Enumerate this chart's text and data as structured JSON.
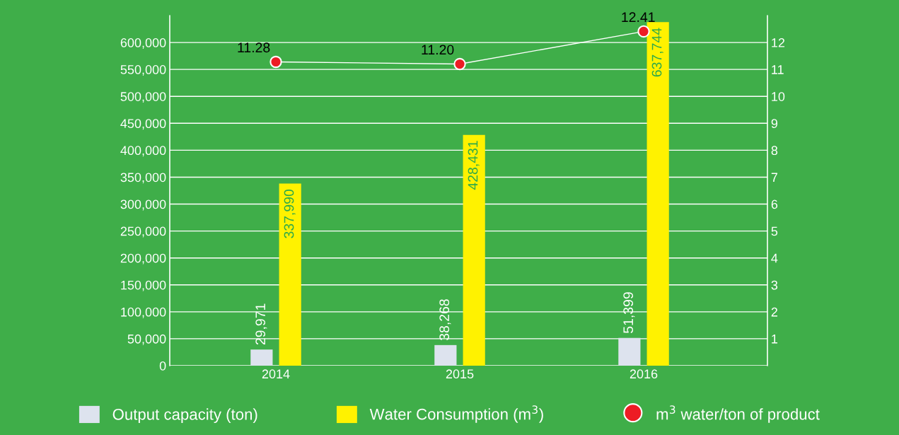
{
  "chart_data": {
    "type": "bar",
    "categories": [
      "2014",
      "2015",
      "2016"
    ],
    "series": [
      {
        "name": "Output capacity (ton)",
        "color": "#dde3ee",
        "values": [
          29971,
          38268,
          51399
        ],
        "value_labels": [
          "29,971",
          "38,268",
          "51,399"
        ]
      },
      {
        "name": "Water Consumption (m$^{3}$)",
        "color": "#fff200",
        "values": [
          337990,
          428431,
          637744
        ],
        "value_labels": [
          "337,990",
          "428,431",
          "637,744"
        ]
      },
      {
        "name": "m$^{3}$ water/ton of product",
        "type": "line",
        "axis": "y2",
        "color": "#ed1c24",
        "values": [
          11.28,
          11.2,
          12.41
        ],
        "value_labels": [
          "11.28",
          "11.20",
          "12.41"
        ]
      }
    ],
    "ylim": [
      0,
      650000
    ],
    "yticks": [
      {
        "value": 0,
        "label": "0"
      },
      {
        "value": 50000,
        "label": "50,000"
      },
      {
        "value": 100000,
        "label": "100,000"
      },
      {
        "value": 150000,
        "label": "150,000"
      },
      {
        "value": 200000,
        "label": "200,000"
      },
      {
        "value": 250000,
        "label": "250,000"
      },
      {
        "value": 300000,
        "label": "300,000"
      },
      {
        "value": 350000,
        "label": "350,000"
      },
      {
        "value": 400000,
        "label": "400,000"
      },
      {
        "value": 450000,
        "label": "450,000"
      },
      {
        "value": 500000,
        "label": "500,000"
      },
      {
        "value": 550000,
        "label": "550,000"
      },
      {
        "value": 600000,
        "label": "600,000"
      }
    ],
    "y2lim": [
      0,
      13
    ],
    "y2ticks": [
      1,
      2,
      3,
      4,
      5,
      6,
      7,
      8,
      9,
      10,
      11,
      12
    ],
    "grid": "y",
    "legend": "bottom",
    "marker": "circle"
  }
}
